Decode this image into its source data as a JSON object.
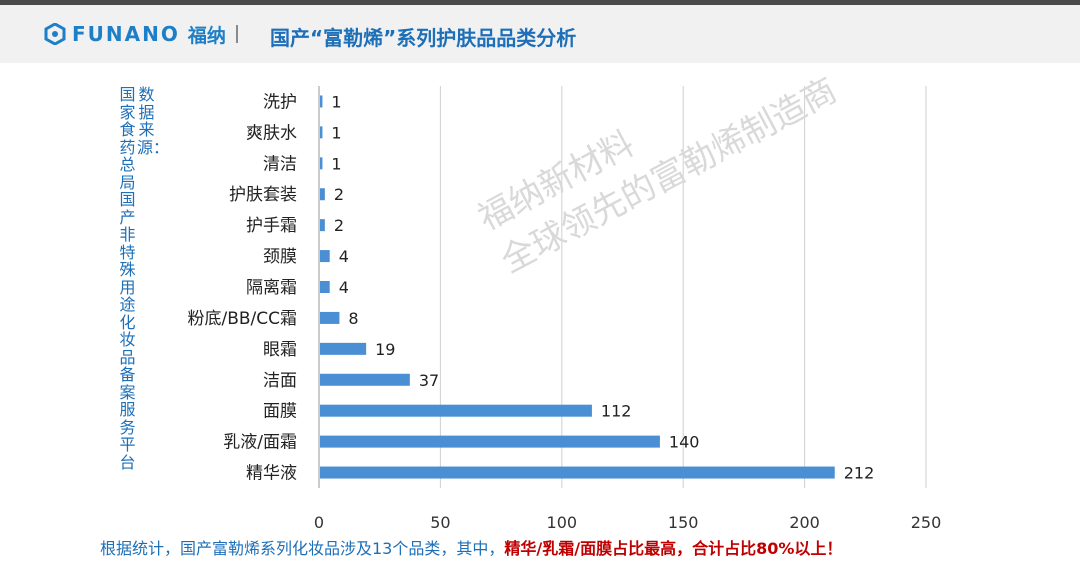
{
  "header": {
    "brand": "FUNANO",
    "brand_cn": "福纳",
    "title": "国产“富勒烯”系列护肤品品类分析",
    "brand_color": "#1d7fc7"
  },
  "side_note": "数据来源：国家食药总局国产非特殊用途化妆品备案服务平台",
  "watermark": {
    "line1": "福纳新材料",
    "line2": "全球领先的富勒烯制造商"
  },
  "footer": {
    "text": "根据统计，国产富勒烯系列化妆品涉及13个品类，其中，",
    "highlight": "精华/乳霜/面膜占比最高，合计占比80%以上！"
  },
  "chart_data": {
    "type": "bar",
    "orientation": "horizontal",
    "categories": [
      "洗护",
      "爽肤水",
      "清洁",
      "护肤套装",
      "护手霜",
      "颈膜",
      "隔离霜",
      "粉底/BB/CC霜",
      "眼霜",
      "洁面",
      "面膜",
      "乳液/面霜",
      "精华液"
    ],
    "values": [
      1,
      1,
      1,
      2,
      2,
      4,
      4,
      8,
      19,
      37,
      112,
      140,
      212
    ],
    "xlim": [
      0,
      250
    ],
    "xticks": [
      0,
      50,
      100,
      150,
      200,
      250
    ],
    "grid": true,
    "bar_color": "#4a8fd4"
  }
}
